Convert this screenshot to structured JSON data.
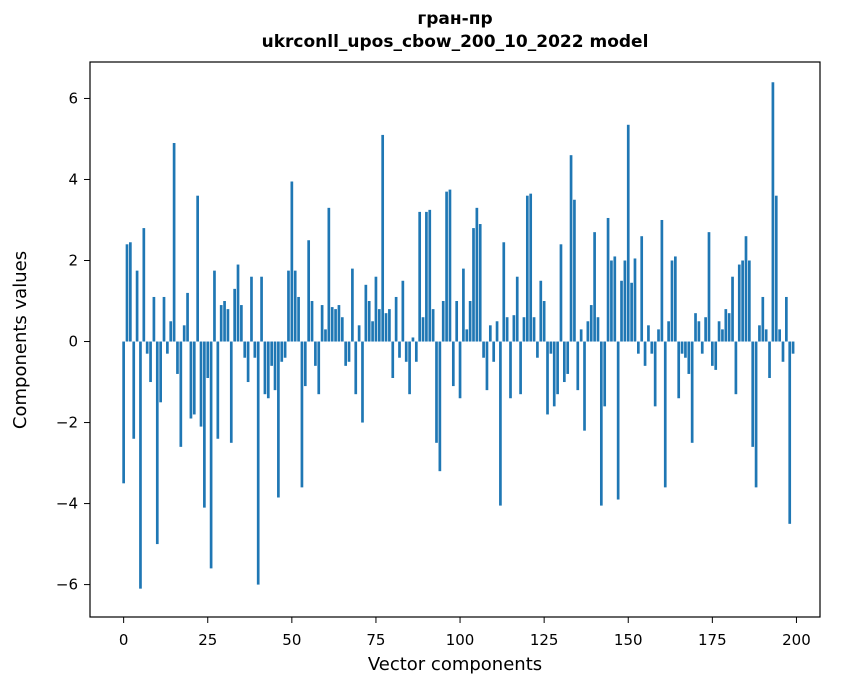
{
  "chart_data": {
    "type": "bar",
    "title_line1": "гран-пр",
    "title_line2": "ukrconll_upos_cbow_200_10_2022 model",
    "xlabel": "Vector components",
    "ylabel": "Components values",
    "bar_color": "#1f77b4",
    "axis_color": "#000000",
    "background_color": "#ffffff",
    "grid": false,
    "legend": null,
    "x_start": 0,
    "xlim": [
      -10,
      207
    ],
    "ylim": [
      -6.8,
      6.9
    ],
    "xticks": [
      0,
      25,
      50,
      75,
      100,
      125,
      150,
      175,
      200
    ],
    "yticks": [
      -6,
      -4,
      -2,
      0,
      2,
      4,
      6
    ],
    "values": [
      -3.5,
      2.4,
      2.45,
      -2.4,
      1.75,
      -6.1,
      2.8,
      -0.3,
      -1.0,
      1.1,
      -5.0,
      -1.5,
      1.1,
      -0.3,
      0.5,
      4.9,
      -0.8,
      -2.6,
      0.4,
      1.2,
      -1.9,
      -1.8,
      3.6,
      -2.1,
      -4.1,
      -0.9,
      -5.6,
      1.75,
      -2.4,
      0.9,
      1.0,
      0.8,
      -2.5,
      1.3,
      1.9,
      0.9,
      -0.4,
      -1.0,
      1.6,
      -0.4,
      -6.0,
      1.6,
      -1.3,
      -1.4,
      -0.6,
      -1.2,
      -3.85,
      -0.5,
      -0.4,
      1.75,
      3.95,
      1.75,
      1.1,
      -3.6,
      -1.1,
      2.5,
      1.0,
      -0.6,
      -1.3,
      0.9,
      0.3,
      3.3,
      0.85,
      0.8,
      0.9,
      0.6,
      -0.6,
      -0.5,
      1.8,
      -1.3,
      0.4,
      -2.0,
      1.4,
      1.0,
      0.5,
      1.6,
      0.8,
      5.1,
      0.7,
      0.8,
      -0.9,
      1.1,
      -0.4,
      1.5,
      -0.5,
      -1.3,
      0.1,
      -0.5,
      3.2,
      0.6,
      3.2,
      3.25,
      0.8,
      -2.5,
      -3.2,
      1.0,
      3.7,
      3.75,
      -1.1,
      1.0,
      -1.4,
      1.8,
      0.3,
      1.0,
      2.8,
      3.3,
      2.9,
      -0.4,
      -1.2,
      0.4,
      -0.5,
      0.5,
      -4.05,
      2.45,
      0.6,
      -1.4,
      0.65,
      1.6,
      -1.3,
      0.6,
      3.6,
      3.65,
      0.6,
      -0.4,
      1.5,
      1.0,
      -1.8,
      -0.3,
      -1.6,
      -1.3,
      2.4,
      -1.0,
      -0.8,
      4.6,
      3.5,
      -1.2,
      0.3,
      -2.2,
      0.5,
      0.9,
      2.7,
      0.6,
      -4.05,
      -1.6,
      3.05,
      2.0,
      2.1,
      -3.9,
      1.5,
      2.0,
      5.35,
      1.45,
      2.05,
      -0.3,
      2.6,
      -0.6,
      0.4,
      -0.3,
      -1.6,
      0.3,
      3.0,
      -3.6,
      0.5,
      2.0,
      2.1,
      -1.4,
      -0.3,
      -0.4,
      -0.8,
      -2.5,
      0.7,
      0.5,
      -0.3,
      0.6,
      2.7,
      -0.6,
      -0.7,
      0.5,
      0.3,
      0.8,
      0.7,
      1.6,
      -1.3,
      1.9,
      2.0,
      2.6,
      2.0,
      -2.6,
      -3.6,
      0.4,
      1.1,
      0.3,
      -0.9,
      6.4,
      3.6,
      0.3,
      -0.5,
      1.1,
      -4.5,
      -0.3
    ]
  }
}
